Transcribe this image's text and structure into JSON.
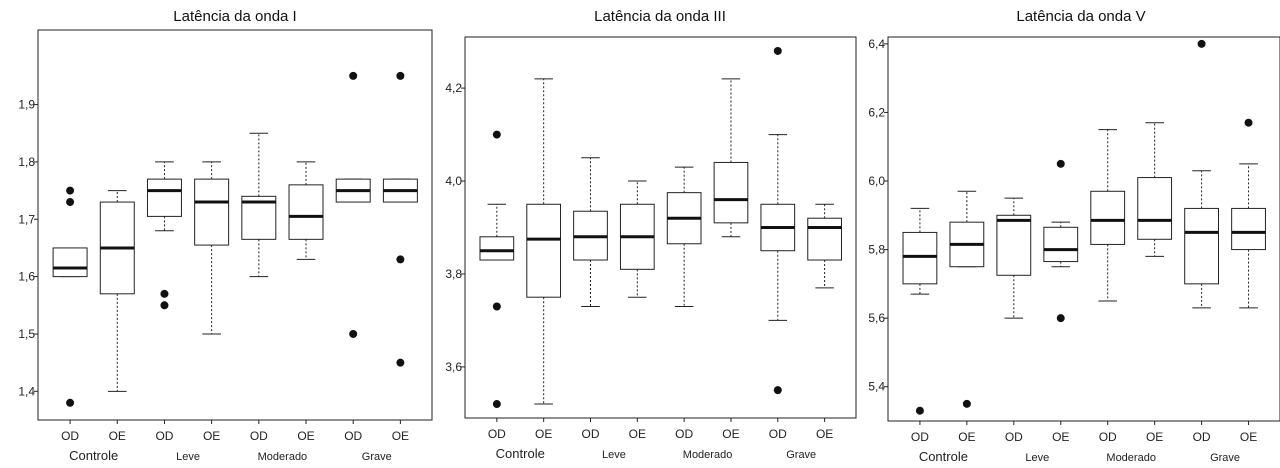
{
  "chart_data": [
    {
      "type": "boxplot",
      "title": "Latência da onda I",
      "categories": [
        "OD",
        "OE",
        "OD",
        "OE",
        "OD",
        "OE",
        "OD",
        "OE"
      ],
      "groups": [
        "Controle",
        "Leve",
        "Moderado",
        "Grave"
      ],
      "ylim": [
        1.35,
        2.03
      ],
      "yticks": [
        "1,4",
        "1,5",
        "1,6",
        "1,7",
        "1,8",
        "1,9"
      ],
      "ytick_values": [
        1.4,
        1.5,
        1.6,
        1.7,
        1.8,
        1.9
      ],
      "boxes": [
        {
          "whisker_low": 1.6,
          "q1": 1.6,
          "median": 1.615,
          "q3": 1.65,
          "whisker_high": 1.65,
          "outliers": [
            1.38,
            1.73,
            1.75
          ]
        },
        {
          "whisker_low": 1.4,
          "q1": 1.57,
          "median": 1.65,
          "q3": 1.73,
          "whisker_high": 1.75,
          "outliers": []
        },
        {
          "whisker_low": 1.68,
          "q1": 1.705,
          "median": 1.75,
          "q3": 1.77,
          "whisker_high": 1.8,
          "outliers": [
            1.55,
            1.57
          ]
        },
        {
          "whisker_low": 1.5,
          "q1": 1.655,
          "median": 1.73,
          "q3": 1.77,
          "whisker_high": 1.8,
          "outliers": []
        },
        {
          "whisker_low": 1.6,
          "q1": 1.665,
          "median": 1.73,
          "q3": 1.74,
          "whisker_high": 1.85,
          "outliers": []
        },
        {
          "whisker_low": 1.63,
          "q1": 1.665,
          "median": 1.705,
          "q3": 1.76,
          "whisker_high": 1.8,
          "outliers": []
        },
        {
          "whisker_low": 1.73,
          "q1": 1.73,
          "median": 1.75,
          "q3": 1.77,
          "whisker_high": 1.77,
          "outliers": [
            1.5,
            1.95
          ]
        },
        {
          "whisker_low": 1.73,
          "q1": 1.73,
          "median": 1.75,
          "q3": 1.77,
          "whisker_high": 1.77,
          "outliers": [
            1.45,
            1.63,
            1.95
          ]
        }
      ]
    },
    {
      "type": "boxplot",
      "title": "Latência da onda III",
      "categories": [
        "OD",
        "OE",
        "OD",
        "OE",
        "OD",
        "OE",
        "OD",
        "OE"
      ],
      "groups": [
        "Controle",
        "Leve",
        "Moderado",
        "Grave"
      ],
      "ylim": [
        3.49,
        4.31
      ],
      "yticks": [
        "3,6",
        "3,8",
        "4,0",
        "4,2"
      ],
      "ytick_values": [
        3.6,
        3.8,
        4.0,
        4.2
      ],
      "boxes": [
        {
          "whisker_low": 3.83,
          "q1": 3.83,
          "median": 3.85,
          "q3": 3.88,
          "whisker_high": 3.95,
          "outliers": [
            3.52,
            3.73,
            4.1
          ]
        },
        {
          "whisker_low": 3.52,
          "q1": 3.75,
          "median": 3.875,
          "q3": 3.95,
          "whisker_high": 4.22,
          "outliers": []
        },
        {
          "whisker_low": 3.73,
          "q1": 3.83,
          "median": 3.88,
          "q3": 3.935,
          "whisker_high": 4.05,
          "outliers": []
        },
        {
          "whisker_low": 3.75,
          "q1": 3.81,
          "median": 3.88,
          "q3": 3.95,
          "whisker_high": 4.0,
          "outliers": []
        },
        {
          "whisker_low": 3.73,
          "q1": 3.865,
          "median": 3.92,
          "q3": 3.975,
          "whisker_high": 4.03,
          "outliers": []
        },
        {
          "whisker_low": 3.88,
          "q1": 3.91,
          "median": 3.96,
          "q3": 4.04,
          "whisker_high": 4.22,
          "outliers": []
        },
        {
          "whisker_low": 3.7,
          "q1": 3.85,
          "median": 3.9,
          "q3": 3.95,
          "whisker_high": 4.1,
          "outliers": [
            3.55,
            4.28
          ]
        },
        {
          "whisker_low": 3.77,
          "q1": 3.83,
          "median": 3.9,
          "q3": 3.92,
          "whisker_high": 3.95,
          "outliers": []
        }
      ]
    },
    {
      "type": "boxplot",
      "title": "Latência da onda V",
      "categories": [
        "OD",
        "OE",
        "OD",
        "OE",
        "OD",
        "OE",
        "OD",
        "OE"
      ],
      "groups": [
        "Controle",
        "Leve",
        "Moderado",
        "Grave"
      ],
      "ylim": [
        5.3,
        6.42
      ],
      "yticks": [
        "5,4",
        "5,6",
        "5,8",
        "6,0",
        "6,2",
        "6,4"
      ],
      "ytick_values": [
        5.4,
        5.6,
        5.8,
        6.0,
        6.2,
        6.4
      ],
      "boxes": [
        {
          "whisker_low": 5.67,
          "q1": 5.7,
          "median": 5.78,
          "q3": 5.85,
          "whisker_high": 5.92,
          "outliers": [
            5.33
          ]
        },
        {
          "whisker_low": 5.75,
          "q1": 5.75,
          "median": 5.815,
          "q3": 5.88,
          "whisker_high": 5.97,
          "outliers": [
            5.35
          ]
        },
        {
          "whisker_low": 5.6,
          "q1": 5.725,
          "median": 5.885,
          "q3": 5.9,
          "whisker_high": 5.95,
          "outliers": []
        },
        {
          "whisker_low": 5.75,
          "q1": 5.765,
          "median": 5.8,
          "q3": 5.865,
          "whisker_high": 5.88,
          "outliers": [
            5.6,
            6.05
          ]
        },
        {
          "whisker_low": 5.65,
          "q1": 5.815,
          "median": 5.885,
          "q3": 5.97,
          "whisker_high": 6.15,
          "outliers": []
        },
        {
          "whisker_low": 5.78,
          "q1": 5.83,
          "median": 5.885,
          "q3": 6.01,
          "whisker_high": 6.17,
          "outliers": []
        },
        {
          "whisker_low": 5.63,
          "q1": 5.7,
          "median": 5.85,
          "q3": 5.92,
          "whisker_high": 6.03,
          "outliers": [
            6.4
          ]
        },
        {
          "whisker_low": 5.63,
          "q1": 5.8,
          "median": 5.85,
          "q3": 5.92,
          "whisker_high": 6.05,
          "outliers": [
            6.17
          ]
        }
      ]
    }
  ]
}
